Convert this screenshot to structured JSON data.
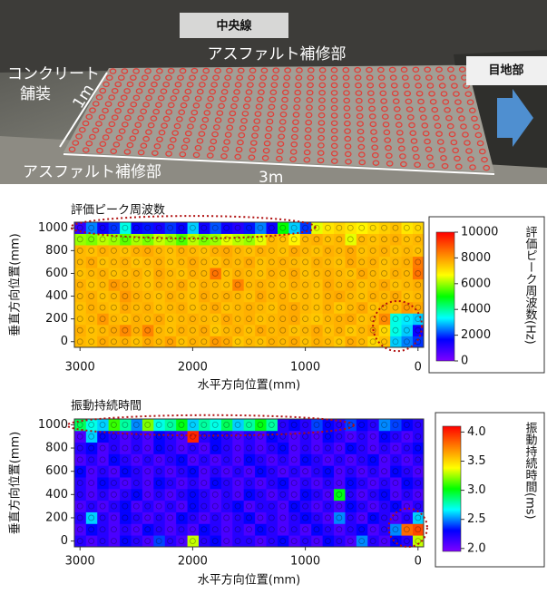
{
  "photo": {
    "center_line": "中央線",
    "asphalt_top": "アスファルト補修部",
    "concrete": [
      "コンクリート",
      "舗装"
    ],
    "width_1m": "1m",
    "joint": "目地部",
    "asphalt_bottom": "アスファルト補修部",
    "length_3m": "3m"
  },
  "chart_data": [
    {
      "type": "heatmap",
      "title": "評価ピーク周波数",
      "xlabel": "水平方向位置(mm)",
      "ylabel": "垂直方向位置(mm)",
      "colorbar_label": "評価ピーク周波数(Hz)",
      "x": [
        0,
        100,
        200,
        300,
        400,
        500,
        600,
        700,
        800,
        900,
        1000,
        1100,
        1200,
        1300,
        1400,
        1500,
        1600,
        1700,
        1800,
        1900,
        2000,
        2100,
        2200,
        2300,
        2400,
        2500,
        2600,
        2700,
        2800,
        2900,
        3000
      ],
      "y": [
        0,
        100,
        200,
        300,
        400,
        500,
        600,
        700,
        800,
        900,
        1000
      ],
      "values": [
        [
          2000,
          2500,
          3000,
          7500,
          7200,
          7600,
          7800,
          7400,
          7600,
          7700,
          7500,
          7800,
          7600,
          7700,
          7500,
          7600,
          7400,
          7800,
          8000,
          7600,
          7700,
          7500,
          7900,
          7600,
          7800,
          7500,
          7700,
          7600,
          7800,
          7500,
          7600
        ],
        [
          1500,
          3000,
          3500,
          7200,
          7800,
          7600,
          7400,
          7700,
          7500,
          7800,
          7600,
          7500,
          7700,
          7600,
          7800,
          7500,
          7700,
          7600,
          7400,
          7800,
          7600,
          7700,
          7500,
          7600,
          8300,
          7700,
          8200,
          7800,
          7600,
          7500,
          7700
        ],
        [
          3000,
          3200,
          3500,
          8200,
          7600,
          7500,
          7800,
          7700,
          7600,
          7400,
          7500,
          7800,
          7700,
          7600,
          7500,
          7700,
          7600,
          7800,
          7500,
          7600,
          7700,
          7600,
          7500,
          7800,
          7600,
          7700,
          7500,
          7600,
          8000,
          7600,
          7500
        ],
        [
          7800,
          8000,
          7600,
          7700,
          7500,
          7800,
          7600,
          7400,
          7700,
          7500,
          7600,
          7800,
          7700,
          7500,
          7600,
          7700,
          7600,
          7500,
          7800,
          7600,
          7500,
          7700,
          7600,
          7500,
          7700,
          7600,
          7800,
          7500,
          7600,
          7700,
          7500
        ],
        [
          7600,
          7500,
          7800,
          7600,
          7700,
          7500,
          7600,
          7800,
          7700,
          7500,
          7600,
          7500,
          7700,
          7600,
          7800,
          7500,
          7600,
          7700,
          7600,
          7800,
          7500,
          7600,
          7700,
          7500,
          7600,
          7700,
          8000,
          7600,
          7500,
          7700,
          7600
        ],
        [
          7700,
          7600,
          7500,
          7800,
          7600,
          7500,
          7700,
          7600,
          7800,
          7500,
          7600,
          7700,
          7500,
          7600,
          7700,
          7600,
          8300,
          7500,
          7600,
          7700,
          7500,
          7800,
          7600,
          7700,
          7500,
          7600,
          7800,
          8000,
          7600,
          7500,
          7700
        ],
        [
          8500,
          7600,
          7700,
          7500,
          7600,
          7800,
          7500,
          7600,
          7700,
          7600,
          7500,
          7800,
          7600,
          7700,
          7500,
          7600,
          7700,
          7500,
          8500,
          7600,
          7700,
          7500,
          7600,
          7800,
          7500,
          7700,
          7600,
          7500,
          7700,
          7600,
          7500
        ],
        [
          8400,
          7700,
          7600,
          7500,
          7700,
          7600,
          7800,
          7500,
          7600,
          7700,
          7500,
          7600,
          7700,
          7600,
          7500,
          7800,
          7600,
          7700,
          7500,
          7600,
          7800,
          7600,
          7500,
          7700,
          7600,
          7500,
          7700,
          7600,
          7500,
          7800,
          7600
        ],
        [
          7500,
          7600,
          7500,
          7700,
          7600,
          7500,
          7800,
          7600,
          7700,
          7500,
          7600,
          7800,
          7500,
          7600,
          7700,
          7500,
          7600,
          7800,
          7700,
          7500,
          7600,
          7700,
          7500,
          7600,
          7800,
          7700,
          7500,
          7600,
          7700,
          7500,
          7600
        ],
        [
          7600,
          7500,
          7700,
          7600,
          7500,
          7600,
          6500,
          7600,
          7500,
          7700,
          7600,
          6800,
          7500,
          7600,
          6500,
          6000,
          6200,
          6500,
          6000,
          5800,
          6200,
          5500,
          6000,
          6300,
          5800,
          6100,
          5600,
          6000,
          6200,
          5800,
          6000
        ],
        [
          7200,
          7000,
          7500,
          7300,
          7100,
          6800,
          7000,
          7200,
          7000,
          6500,
          2000,
          3000,
          5000,
          1500,
          2500,
          1800,
          1200,
          1500,
          2200,
          1500,
          3000,
          1600,
          2000,
          1400,
          1800,
          1600,
          3500,
          2000,
          1500,
          2500,
          1000
        ]
      ],
      "xlim": [
        3050,
        -50
      ],
      "ylim": [
        -50,
        1050
      ],
      "xticks": [
        3000,
        2000,
        1000,
        0
      ],
      "yticks": [
        0,
        200,
        400,
        600,
        800,
        1000
      ],
      "zlim": [
        0,
        10000
      ],
      "zticks": [
        0,
        2000,
        4000,
        6000,
        8000,
        10000
      ],
      "colorscale": [
        "#7f00ff",
        "#0000ff",
        "#00ffff",
        "#00ff00",
        "#ffff00",
        "#ff8000",
        "#ff0000"
      ]
    },
    {
      "type": "heatmap",
      "title": "振動持続時間",
      "xlabel": "水平方向位置(mm)",
      "ylabel": "垂直方向位置(mm)",
      "colorbar_label": "振動持続時間(ms)",
      "x": [
        0,
        100,
        200,
        300,
        400,
        500,
        600,
        700,
        800,
        900,
        1000,
        1100,
        1200,
        1300,
        1400,
        1500,
        1600,
        1700,
        1800,
        1900,
        2000,
        2100,
        2200,
        2300,
        2400,
        2500,
        2600,
        2700,
        2800,
        2900,
        3000
      ],
      "y": [
        0,
        100,
        200,
        300,
        400,
        500,
        600,
        700,
        800,
        900,
        1000
      ],
      "values": [
        [
          3.3,
          2.2,
          2.3,
          2.1,
          2.2,
          2.5,
          2.1,
          2.2,
          2.3,
          2.1,
          2.2,
          2.1,
          2.3,
          2.2,
          2.1,
          2.2,
          2.2,
          2.1,
          2.3,
          2.2,
          3.3,
          2.1,
          2.2,
          2.4,
          2.1,
          2.2,
          2.3,
          2.1,
          2.2,
          2.1,
          2.2
        ],
        [
          3.9,
          3.8,
          2.5,
          2.2,
          2.1,
          2.3,
          2.2,
          2.1,
          2.2,
          2.3,
          2.1,
          2.2,
          2.1,
          2.2,
          2.3,
          2.1,
          2.2,
          2.1,
          2.2,
          2.3,
          2.1,
          2.2,
          2.1,
          2.2,
          2.3,
          2.1,
          2.2,
          2.1,
          2.2,
          2.3,
          2.1
        ],
        [
          2.6,
          2.2,
          2.1,
          2.2,
          2.3,
          2.1,
          2.2,
          2.5,
          2.1,
          2.2,
          2.3,
          2.2,
          2.1,
          2.2,
          2.1,
          2.3,
          2.2,
          2.1,
          2.2,
          2.1,
          2.2,
          2.3,
          2.1,
          2.2,
          2.1,
          2.2,
          2.3,
          2.1,
          2.2,
          2.6,
          2.2
        ],
        [
          2.2,
          2.1,
          2.3,
          2.2,
          2.1,
          2.2,
          2.3,
          2.1,
          2.2,
          2.1,
          2.2,
          2.3,
          2.1,
          2.2,
          2.2,
          2.1,
          2.3,
          2.2,
          2.1,
          2.2,
          2.3,
          2.1,
          2.2,
          2.1,
          2.2,
          2.1,
          2.3,
          2.2,
          2.1,
          2.2,
          2.1
        ],
        [
          2.1,
          2.2,
          2.1,
          2.3,
          2.2,
          2.1,
          2.2,
          3.0,
          2.1,
          2.2,
          2.3,
          2.1,
          2.2,
          2.1,
          2.2,
          2.3,
          2.1,
          2.2,
          2.1,
          2.2,
          2.3,
          2.2,
          2.1,
          2.2,
          2.1,
          2.3,
          2.2,
          2.1,
          2.2,
          2.1,
          2.2
        ],
        [
          2.2,
          2.3,
          2.1,
          2.2,
          2.1,
          2.2,
          2.3,
          2.1,
          2.2,
          2.1,
          2.2,
          2.1,
          2.3,
          2.2,
          2.1,
          2.2,
          2.1,
          2.2,
          2.3,
          2.1,
          2.2,
          2.1,
          2.2,
          2.3,
          2.1,
          2.2,
          2.1,
          2.2,
          2.3,
          2.1,
          2.2
        ],
        [
          2.1,
          2.2,
          2.3,
          2.1,
          2.2,
          2.1,
          2.2,
          2.1,
          2.3,
          2.2,
          2.1,
          2.2,
          2.1,
          2.2,
          2.3,
          2.1,
          2.2,
          2.1,
          2.2,
          2.1,
          2.3,
          2.2,
          2.1,
          2.2,
          2.1,
          2.2,
          2.3,
          2.1,
          2.2,
          2.1,
          2.3
        ],
        [
          2.2,
          2.1,
          2.2,
          2.1,
          2.3,
          2.2,
          2.1,
          2.2,
          2.1,
          2.2,
          2.3,
          2.1,
          2.2,
          2.1,
          2.2,
          2.3,
          2.1,
          2.2,
          2.1,
          2.2,
          2.1,
          2.3,
          2.2,
          2.1,
          2.2,
          2.1,
          2.2,
          2.3,
          2.1,
          2.2,
          2.1
        ],
        [
          2.3,
          2.2,
          2.1,
          2.2,
          2.1,
          2.2,
          2.3,
          2.1,
          2.2,
          2.1,
          2.2,
          2.1,
          2.3,
          2.2,
          2.1,
          2.2,
          2.1,
          2.2,
          2.3,
          2.1,
          2.2,
          2.1,
          2.2,
          2.3,
          2.1,
          2.2,
          2.1,
          2.2,
          2.1,
          2.3,
          2.2
        ],
        [
          2.2,
          2.1,
          2.2,
          2.3,
          2.1,
          2.2,
          2.1,
          2.2,
          2.3,
          2.1,
          2.2,
          2.1,
          2.2,
          2.3,
          2.1,
          2.2,
          2.1,
          2.2,
          2.3,
          2.2,
          4.0,
          2.1,
          2.2,
          2.3,
          2.1,
          2.2,
          2.1,
          2.2,
          2.3,
          2.6,
          2.1
        ],
        [
          2.2,
          2.3,
          2.4,
          2.5,
          2.2,
          2.3,
          2.4,
          2.2,
          2.3,
          2.4,
          2.2,
          2.3,
          2.2,
          2.8,
          3.0,
          2.8,
          2.6,
          2.9,
          2.7,
          2.8,
          2.6,
          3.0,
          2.8,
          2.7,
          3.2,
          2.5,
          2.8,
          3.1,
          2.6,
          2.7,
          2.9
        ]
      ],
      "xlim": [
        3050,
        -50
      ],
      "ylim": [
        -50,
        1050
      ],
      "xticks": [
        3000,
        2000,
        1000,
        0
      ],
      "yticks": [
        0,
        200,
        400,
        600,
        800,
        1000
      ],
      "zlim": [
        1.95,
        4.1
      ],
      "zticks": [
        {
          "value": 2,
          "label": "2.0"
        },
        {
          "value": 2.5,
          "label": "2.5"
        },
        {
          "value": 3,
          "label": "3.0"
        },
        {
          "value": 3.5,
          "label": "3.5"
        },
        {
          "value": 4,
          "label": "4.0"
        }
      ],
      "colorscale": [
        "#7f00ff",
        "#0000ff",
        "#00ffff",
        "#00ff00",
        "#ffff00",
        "#ff8000",
        "#ff0000"
      ]
    }
  ]
}
